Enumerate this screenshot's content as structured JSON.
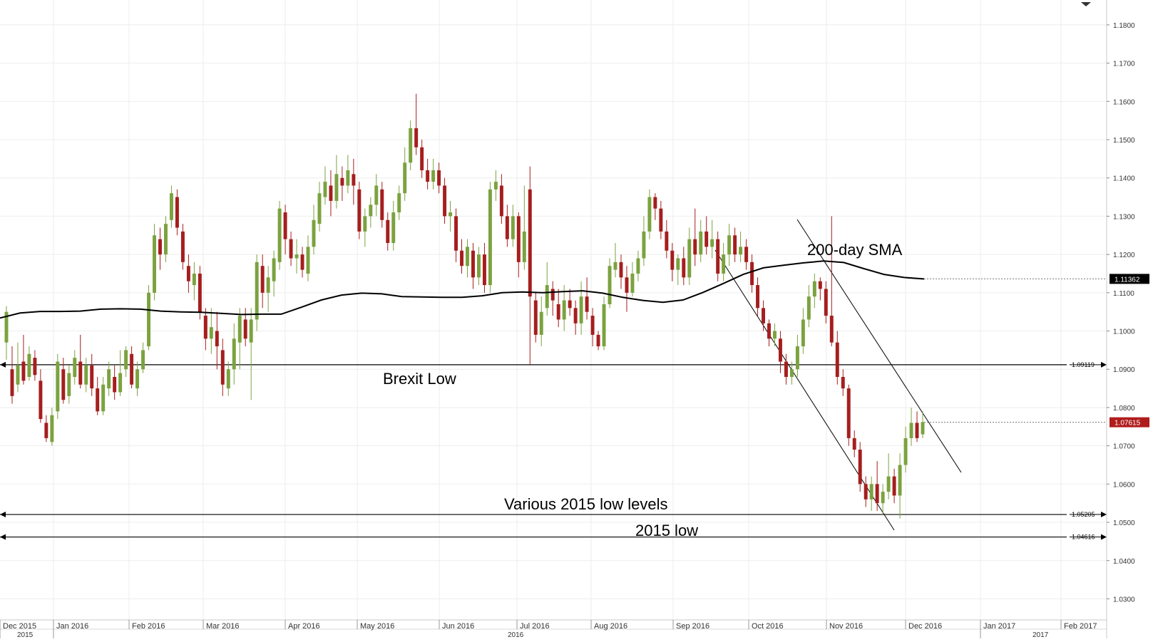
{
  "chart_data": {
    "type": "candlestick",
    "y_ticks": [
      "1.1800",
      "1.1700",
      "1.1600",
      "1.1500",
      "1.1400",
      "1.1300",
      "1.1200",
      "1.1100",
      "1.1000",
      "1.0900",
      "1.0800",
      "1.0700",
      "1.0600",
      "1.0500",
      "1.0400",
      "1.0300"
    ],
    "ylim": [
      1.0245,
      1.1865
    ],
    "x_axis": {
      "months": [
        "Dec 2015",
        "Jan 2016",
        "Feb 2016",
        "Mar 2016",
        "Apr 2016",
        "May 2016",
        "Jun 2016",
        "Jul 2016",
        "Aug 2016",
        "Sep 2016",
        "Oct 2016",
        "Nov 2016",
        "Dec 2016",
        "Jan 2017",
        "Feb 2017"
      ],
      "years": [
        "2015",
        "2016",
        "2017"
      ]
    },
    "horizontal_levels": [
      {
        "value": 1.09119,
        "label": "1.09119"
      },
      {
        "value": 1.05205,
        "label": "1.05205"
      },
      {
        "value": 1.04616,
        "label": "1.04616"
      }
    ],
    "annotations": [
      "Brexit Low",
      "Various 2015 low levels",
      "2015 low",
      "200-day SMA"
    ],
    "price_tags": [
      {
        "label": "1.11362",
        "value": 1.11362,
        "color": "#000000"
      },
      {
        "label": "1.07615",
        "value": 1.07615,
        "color": "#b01c1c"
      }
    ],
    "sma_200": [
      1.1034,
      1.1047,
      1.1051,
      1.1051,
      1.1052,
      1.1057,
      1.1058,
      1.1057,
      1.1052,
      1.105,
      1.1049,
      1.1046,
      1.1043,
      1.1044,
      1.1044,
      1.1062,
      1.1081,
      1.1094,
      1.1099,
      1.1097,
      1.109,
      1.1089,
      1.1088,
      1.1088,
      1.1092,
      1.11,
      1.1102,
      1.11,
      1.1103,
      1.1105,
      1.1099,
      1.1088,
      1.108,
      1.1075,
      1.1081,
      1.1101,
      1.1124,
      1.1148,
      1.1165,
      1.1172,
      1.1178,
      1.1183,
      1.1179,
      1.1163,
      1.1148,
      1.114,
      1.1136
    ],
    "candles": [
      [
        1.097,
        1.105,
        1.1065,
        1.0925
      ],
      [
        1.09,
        1.083,
        1.096,
        1.081
      ],
      [
        1.086,
        1.091,
        1.097,
        1.084
      ],
      [
        1.092,
        1.087,
        1.099,
        1.086
      ],
      [
        1.088,
        1.094,
        1.096,
        1.087
      ],
      [
        1.093,
        1.0885,
        1.095,
        1.087
      ],
      [
        1.087,
        1.077,
        1.09,
        1.076
      ],
      [
        1.076,
        1.072,
        1.078,
        1.071
      ],
      [
        1.071,
        1.078,
        1.08,
        1.07
      ],
      [
        1.079,
        1.092,
        1.094,
        1.077
      ],
      [
        1.09,
        1.082,
        1.093,
        1.081
      ],
      [
        1.083,
        1.089,
        1.091,
        1.081
      ],
      [
        1.088,
        1.093,
        1.095,
        1.086
      ],
      [
        1.092,
        1.086,
        1.099,
        1.085
      ],
      [
        1.086,
        1.091,
        1.093,
        1.084
      ],
      [
        1.091,
        1.085,
        1.094,
        1.083
      ],
      [
        1.085,
        1.079,
        1.088,
        1.078
      ],
      [
        1.079,
        1.086,
        1.088,
        1.078
      ],
      [
        1.085,
        1.09,
        1.092,
        1.083
      ],
      [
        1.088,
        1.084,
        1.091,
        1.082
      ],
      [
        1.084,
        1.089,
        1.095,
        1.083
      ],
      [
        1.09,
        1.095,
        1.096,
        1.088
      ],
      [
        1.094,
        1.086,
        1.096,
        1.085
      ],
      [
        1.085,
        1.09,
        1.092,
        1.083
      ],
      [
        1.09,
        1.095,
        1.097,
        1.089
      ],
      [
        1.096,
        1.11,
        1.112,
        1.095
      ],
      [
        1.11,
        1.125,
        1.128,
        1.108
      ],
      [
        1.124,
        1.12,
        1.127,
        1.116
      ],
      [
        1.12,
        1.128,
        1.13,
        1.118
      ],
      [
        1.129,
        1.136,
        1.138,
        1.127
      ],
      [
        1.135,
        1.127,
        1.137,
        1.125
      ],
      [
        1.126,
        1.118,
        1.128,
        1.116
      ],
      [
        1.117,
        1.113,
        1.12,
        1.11
      ],
      [
        1.112,
        1.115,
        1.118,
        1.108
      ],
      [
        1.115,
        1.105,
        1.117,
        1.103
      ],
      [
        1.104,
        1.098,
        1.106,
        1.095
      ],
      [
        1.098,
        1.101,
        1.106,
        1.094
      ],
      [
        1.1,
        1.096,
        1.105,
        1.09
      ],
      [
        1.095,
        1.086,
        1.098,
        1.083
      ],
      [
        1.085,
        1.09,
        1.092,
        1.083
      ],
      [
        1.09,
        1.098,
        1.102,
        1.086
      ],
      [
        1.097,
        1.104,
        1.106,
        1.09
      ],
      [
        1.103,
        1.098,
        1.106,
        1.096
      ],
      [
        1.097,
        1.103,
        1.106,
        1.082
      ],
      [
        1.103,
        1.118,
        1.12,
        1.1
      ],
      [
        1.117,
        1.11,
        1.12,
        1.106
      ],
      [
        1.11,
        1.114,
        1.117,
        1.105
      ],
      [
        1.113,
        1.119,
        1.121,
        1.109
      ],
      [
        1.118,
        1.132,
        1.134,
        1.116
      ],
      [
        1.131,
        1.124,
        1.133,
        1.12
      ],
      [
        1.124,
        1.119,
        1.126,
        1.117
      ],
      [
        1.119,
        1.12,
        1.124,
        1.115
      ],
      [
        1.12,
        1.116,
        1.122,
        1.114
      ],
      [
        1.115,
        1.122,
        1.125,
        1.113
      ],
      [
        1.122,
        1.129,
        1.133,
        1.12
      ],
      [
        1.128,
        1.136,
        1.139,
        1.126
      ],
      [
        1.135,
        1.139,
        1.143,
        1.133
      ],
      [
        1.138,
        1.134,
        1.142,
        1.13
      ],
      [
        1.134,
        1.141,
        1.146,
        1.132
      ],
      [
        1.14,
        1.138,
        1.143,
        1.134
      ],
      [
        1.138,
        1.142,
        1.146,
        1.136
      ],
      [
        1.141,
        1.138,
        1.145,
        1.133
      ],
      [
        1.137,
        1.126,
        1.139,
        1.124
      ],
      [
        1.126,
        1.13,
        1.132,
        1.122
      ],
      [
        1.13,
        1.133,
        1.135,
        1.127
      ],
      [
        1.133,
        1.138,
        1.141,
        1.13
      ],
      [
        1.137,
        1.129,
        1.139,
        1.127
      ],
      [
        1.129,
        1.123,
        1.131,
        1.121
      ],
      [
        1.123,
        1.131,
        1.134,
        1.121
      ],
      [
        1.131,
        1.136,
        1.138,
        1.129
      ],
      [
        1.136,
        1.144,
        1.148,
        1.134
      ],
      [
        1.144,
        1.153,
        1.155,
        1.142
      ],
      [
        1.153,
        1.148,
        1.162,
        1.146
      ],
      [
        1.148,
        1.142,
        1.15,
        1.14
      ],
      [
        1.142,
        1.139,
        1.145,
        1.137
      ],
      [
        1.139,
        1.142,
        1.145,
        1.137
      ],
      [
        1.142,
        1.138,
        1.144,
        1.136
      ],
      [
        1.138,
        1.13,
        1.14,
        1.128
      ],
      [
        1.13,
        1.131,
        1.134,
        1.126
      ],
      [
        1.13,
        1.121,
        1.132,
        1.118
      ],
      [
        1.121,
        1.117,
        1.124,
        1.115
      ],
      [
        1.117,
        1.122,
        1.124,
        1.114
      ],
      [
        1.121,
        1.114,
        1.123,
        1.111
      ],
      [
        1.114,
        1.12,
        1.122,
        1.112
      ],
      [
        1.12,
        1.112,
        1.123,
        1.11
      ],
      [
        1.112,
        1.137,
        1.139,
        1.11
      ],
      [
        1.137,
        1.139,
        1.142,
        1.134
      ],
      [
        1.138,
        1.13,
        1.141,
        1.128
      ],
      [
        1.13,
        1.124,
        1.133,
        1.122
      ],
      [
        1.124,
        1.13,
        1.133,
        1.122
      ],
      [
        1.13,
        1.118,
        1.131,
        1.114
      ],
      [
        1.118,
        1.126,
        1.138,
        1.116
      ],
      [
        1.137,
        1.109,
        1.143,
        1.0912
      ],
      [
        1.108,
        1.099,
        1.11,
        1.097
      ],
      [
        1.099,
        1.105,
        1.109,
        1.096
      ],
      [
        1.106,
        1.112,
        1.118,
        1.104
      ],
      [
        1.111,
        1.108,
        1.113,
        1.104
      ],
      [
        1.107,
        1.103,
        1.111,
        1.101
      ],
      [
        1.103,
        1.108,
        1.112,
        1.1
      ],
      [
        1.108,
        1.106,
        1.111,
        1.104
      ],
      [
        1.106,
        1.102,
        1.108,
        1.099
      ],
      [
        1.102,
        1.109,
        1.113,
        1.099
      ],
      [
        1.109,
        1.105,
        1.114,
        1.103
      ],
      [
        1.104,
        1.099,
        1.106,
        1.096
      ],
      [
        1.099,
        1.096,
        1.1,
        1.095
      ],
      [
        1.096,
        1.107,
        1.109,
        1.095
      ],
      [
        1.107,
        1.117,
        1.119,
        1.106
      ],
      [
        1.116,
        1.118,
        1.123,
        1.114
      ],
      [
        1.118,
        1.114,
        1.12,
        1.111
      ],
      [
        1.114,
        1.11,
        1.117,
        1.105
      ],
      [
        1.11,
        1.115,
        1.118,
        1.109
      ],
      [
        1.115,
        1.119,
        1.121,
        1.113
      ],
      [
        1.119,
        1.126,
        1.13,
        1.117
      ],
      [
        1.126,
        1.135,
        1.137,
        1.124
      ],
      [
        1.135,
        1.132,
        1.136,
        1.129
      ],
      [
        1.132,
        1.126,
        1.134,
        1.124
      ],
      [
        1.126,
        1.121,
        1.129,
        1.119
      ],
      [
        1.121,
        1.116,
        1.123,
        1.113
      ],
      [
        1.116,
        1.119,
        1.12,
        1.112
      ],
      [
        1.119,
        1.114,
        1.122,
        1.112
      ],
      [
        1.114,
        1.124,
        1.127,
        1.112
      ],
      [
        1.124,
        1.12,
        1.132,
        1.117
      ],
      [
        1.12,
        1.126,
        1.129,
        1.118
      ],
      [
        1.126,
        1.122,
        1.13,
        1.12
      ],
      [
        1.122,
        1.124,
        1.129,
        1.119
      ],
      [
        1.124,
        1.115,
        1.126,
        1.113
      ],
      [
        1.115,
        1.12,
        1.123,
        1.113
      ],
      [
        1.12,
        1.125,
        1.128,
        1.117
      ],
      [
        1.125,
        1.12,
        1.127,
        1.118
      ],
      [
        1.12,
        1.122,
        1.126,
        1.118
      ],
      [
        1.122,
        1.118,
        1.124,
        1.116
      ],
      [
        1.118,
        1.112,
        1.12,
        1.11
      ],
      [
        1.112,
        1.106,
        1.114,
        1.104
      ],
      [
        1.106,
        1.102,
        1.108,
        1.1
      ],
      [
        1.102,
        1.098,
        1.103,
        1.096
      ],
      [
        1.098,
        1.1,
        1.102,
        1.096
      ],
      [
        1.098,
        1.092,
        1.1,
        1.089
      ],
      [
        1.092,
        1.088,
        1.094,
        1.086
      ],
      [
        1.088,
        1.09,
        1.092,
        1.086
      ],
      [
        1.09,
        1.096,
        1.099,
        1.088
      ],
      [
        1.096,
        1.103,
        1.106,
        1.094
      ],
      [
        1.103,
        1.109,
        1.112,
        1.101
      ],
      [
        1.109,
        1.113,
        1.115,
        1.106
      ],
      [
        1.113,
        1.111,
        1.114,
        1.108
      ],
      [
        1.111,
        1.104,
        1.113,
        1.102
      ],
      [
        1.104,
        1.097,
        1.13,
        1.096
      ],
      [
        1.097,
        1.088,
        1.1,
        1.086
      ],
      [
        1.088,
        1.085,
        1.09,
        1.083
      ],
      [
        1.085,
        1.072,
        1.086,
        1.07
      ],
      [
        1.072,
        1.069,
        1.074,
        1.067
      ],
      [
        1.069,
        1.06,
        1.071,
        1.058
      ],
      [
        1.06,
        1.056,
        1.062,
        1.054
      ],
      [
        1.056,
        1.06,
        1.062,
        1.053
      ],
      [
        1.06,
        1.055,
        1.066,
        1.053
      ],
      [
        1.055,
        1.058,
        1.06,
        1.052
      ],
      [
        1.058,
        1.062,
        1.068,
        1.056
      ],
      [
        1.062,
        1.057,
        1.064,
        1.055
      ],
      [
        1.057,
        1.065,
        1.068,
        1.051
      ],
      [
        1.065,
        1.072,
        1.075,
        1.063
      ],
      [
        1.072,
        1.076,
        1.08,
        1.07
      ],
      [
        1.076,
        1.072,
        1.079,
        1.071
      ],
      [
        1.073,
        1.0762,
        1.079,
        1.072
      ]
    ]
  }
}
